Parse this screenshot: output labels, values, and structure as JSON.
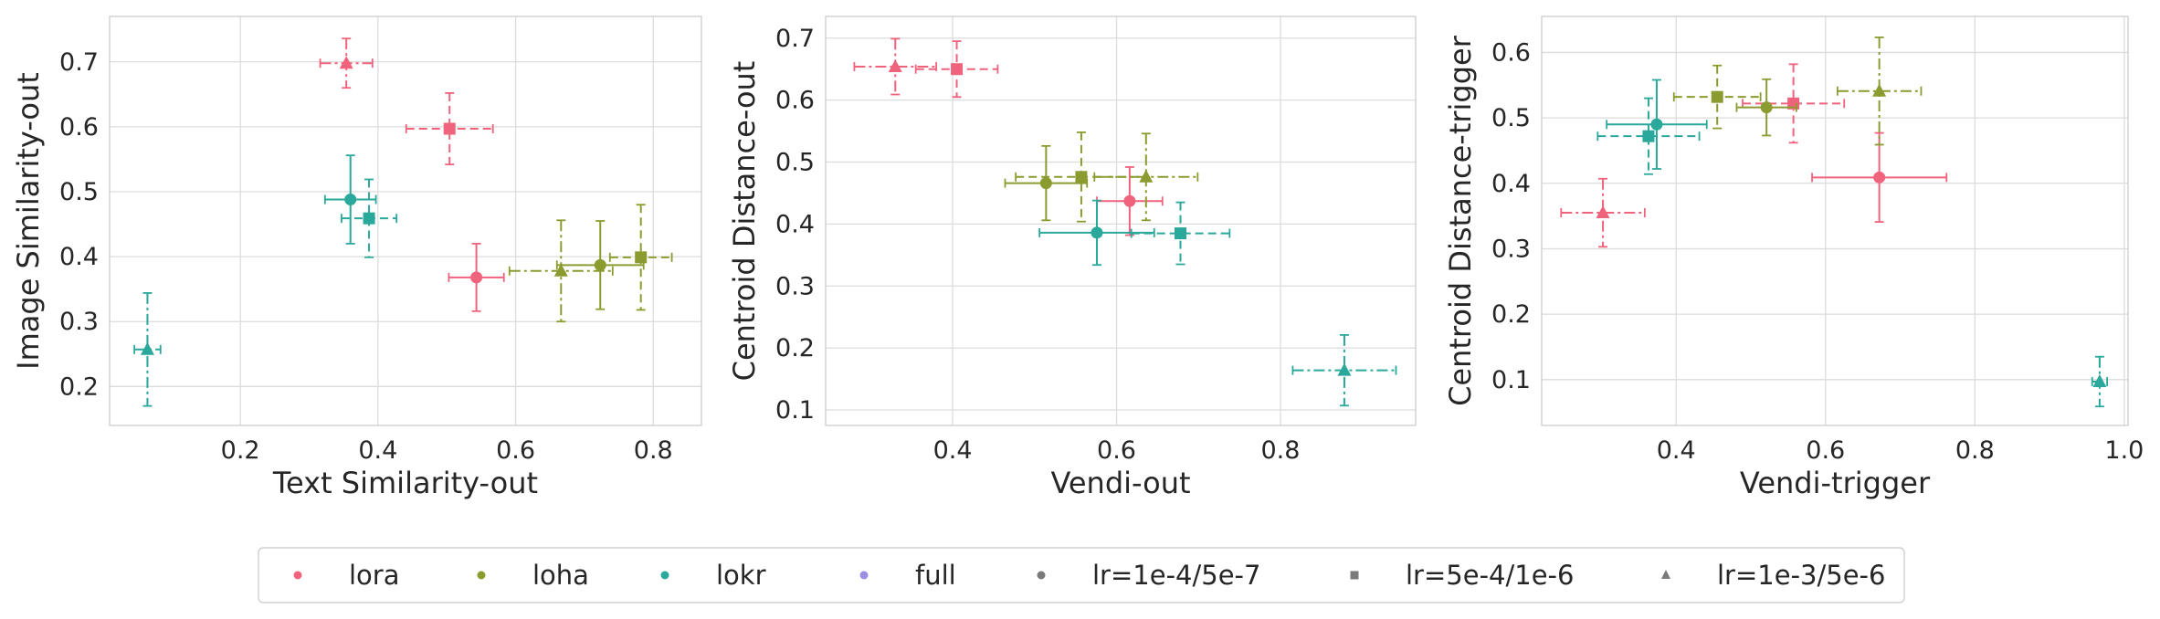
{
  "colors": {
    "lora": "#f0637d",
    "loha": "#8c9b2f",
    "lokr": "#2aa89b",
    "full": "#9b8ee0",
    "neutral": "#7a7a7a"
  },
  "legend": {
    "methods": [
      {
        "key": "lora",
        "label": "lora"
      },
      {
        "key": "loha",
        "label": "loha"
      },
      {
        "key": "lokr",
        "label": "lokr"
      },
      {
        "key": "full",
        "label": "full"
      }
    ],
    "lrs": [
      {
        "key": "lr1",
        "marker": "circle",
        "label": "lr=1e-4/5e-7"
      },
      {
        "key": "lr2",
        "marker": "square",
        "label": "lr=5e-4/1e-6"
      },
      {
        "key": "lr3",
        "marker": "triangle",
        "label": "lr=1e-3/5e-6"
      }
    ]
  },
  "chart_data": [
    {
      "type": "scatter",
      "xlabel": "Text Similarity-out",
      "ylabel": "Image Similarity-out",
      "xlim": [
        0.01,
        0.87
      ],
      "ylim": [
        0.14,
        0.77
      ],
      "xticks": [
        0.2,
        0.4,
        0.6,
        0.8
      ],
      "yticks": [
        0.2,
        0.3,
        0.4,
        0.5,
        0.6,
        0.7
      ],
      "grid": true,
      "points": [
        {
          "method": "lora",
          "lr": "lr1",
          "x": 0.543,
          "y": 0.368,
          "xerr": 0.04,
          "yerr": 0.052
        },
        {
          "method": "lora",
          "lr": "lr2",
          "x": 0.504,
          "y": 0.597,
          "xerr": 0.063,
          "yerr": 0.055
        },
        {
          "method": "lora",
          "lr": "lr3",
          "x": 0.354,
          "y": 0.698,
          "xerr": 0.038,
          "yerr": 0.038
        },
        {
          "method": "loha",
          "lr": "lr1",
          "x": 0.723,
          "y": 0.387,
          "xerr": 0.063,
          "yerr": 0.068
        },
        {
          "method": "loha",
          "lr": "lr2",
          "x": 0.782,
          "y": 0.399,
          "xerr": 0.045,
          "yerr": 0.081
        },
        {
          "method": "loha",
          "lr": "lr3",
          "x": 0.666,
          "y": 0.378,
          "xerr": 0.075,
          "yerr": 0.078
        },
        {
          "method": "lokr",
          "lr": "lr1",
          "x": 0.36,
          "y": 0.488,
          "xerr": 0.037,
          "yerr": 0.068
        },
        {
          "method": "lokr",
          "lr": "lr2",
          "x": 0.387,
          "y": 0.459,
          "xerr": 0.04,
          "yerr": 0.06
        },
        {
          "method": "lokr",
          "lr": "lr3",
          "x": 0.065,
          "y": 0.257,
          "xerr": 0.019,
          "yerr": 0.087
        }
      ]
    },
    {
      "type": "scatter",
      "xlabel": "Vendi-out",
      "ylabel": "Centroid Distance-out",
      "xlim": [
        0.245,
        0.965
      ],
      "ylim": [
        0.075,
        0.735
      ],
      "xticks": [
        0.4,
        0.6,
        0.8
      ],
      "yticks": [
        0.1,
        0.2,
        0.3,
        0.4,
        0.5,
        0.6,
        0.7
      ],
      "grid": true,
      "points": [
        {
          "method": "lora",
          "lr": "lr1",
          "x": 0.616,
          "y": 0.437,
          "xerr": 0.04,
          "yerr": 0.055
        },
        {
          "method": "lora",
          "lr": "lr2",
          "x": 0.405,
          "y": 0.65,
          "xerr": 0.05,
          "yerr": 0.045
        },
        {
          "method": "lora",
          "lr": "lr3",
          "x": 0.33,
          "y": 0.654,
          "xerr": 0.05,
          "yerr": 0.045
        },
        {
          "method": "loha",
          "lr": "lr1",
          "x": 0.514,
          "y": 0.466,
          "xerr": 0.05,
          "yerr": 0.06
        },
        {
          "method": "loha",
          "lr": "lr2",
          "x": 0.557,
          "y": 0.476,
          "xerr": 0.08,
          "yerr": 0.072
        },
        {
          "method": "loha",
          "lr": "lr3",
          "x": 0.636,
          "y": 0.476,
          "xerr": 0.063,
          "yerr": 0.07
        },
        {
          "method": "lokr",
          "lr": "lr1",
          "x": 0.576,
          "y": 0.386,
          "xerr": 0.07,
          "yerr": 0.052
        },
        {
          "method": "lokr",
          "lr": "lr2",
          "x": 0.678,
          "y": 0.385,
          "xerr": 0.06,
          "yerr": 0.05
        },
        {
          "method": "lokr",
          "lr": "lr3",
          "x": 0.878,
          "y": 0.164,
          "xerr": 0.063,
          "yerr": 0.057
        }
      ]
    },
    {
      "type": "scatter",
      "xlabel": "Vendi-trigger",
      "ylabel": "Centroid Distance-trigger",
      "xlim": [
        0.22,
        1.005
      ],
      "ylim": [
        0.03,
        0.655
      ],
      "xticks": [
        0.4,
        0.6,
        0.8,
        1.0
      ],
      "yticks": [
        0.1,
        0.2,
        0.3,
        0.4,
        0.5,
        0.6
      ],
      "xticklabels": [
        "0.4",
        "0.6",
        "0.8",
        "1.0"
      ],
      "grid": true,
      "points": [
        {
          "method": "lora",
          "lr": "lr1",
          "x": 0.672,
          "y": 0.409,
          "xerr": 0.09,
          "yerr": 0.068
        },
        {
          "method": "lora",
          "lr": "lr2",
          "x": 0.557,
          "y": 0.522,
          "xerr": 0.068,
          "yerr": 0.06
        },
        {
          "method": "lora",
          "lr": "lr3",
          "x": 0.302,
          "y": 0.355,
          "xerr": 0.056,
          "yerr": 0.052
        },
        {
          "method": "loha",
          "lr": "lr1",
          "x": 0.521,
          "y": 0.516,
          "xerr": 0.04,
          "yerr": 0.043
        },
        {
          "method": "loha",
          "lr": "lr2",
          "x": 0.455,
          "y": 0.532,
          "xerr": 0.058,
          "yerr": 0.048
        },
        {
          "method": "loha",
          "lr": "lr3",
          "x": 0.672,
          "y": 0.541,
          "xerr": 0.056,
          "yerr": 0.082
        },
        {
          "method": "lokr",
          "lr": "lr1",
          "x": 0.374,
          "y": 0.49,
          "xerr": 0.067,
          "yerr": 0.068
        },
        {
          "method": "lokr",
          "lr": "lr2",
          "x": 0.363,
          "y": 0.472,
          "xerr": 0.068,
          "yerr": 0.058
        },
        {
          "method": "lokr",
          "lr": "lr3",
          "x": 0.967,
          "y": 0.097,
          "xerr": 0.01,
          "yerr": 0.038
        }
      ]
    }
  ]
}
